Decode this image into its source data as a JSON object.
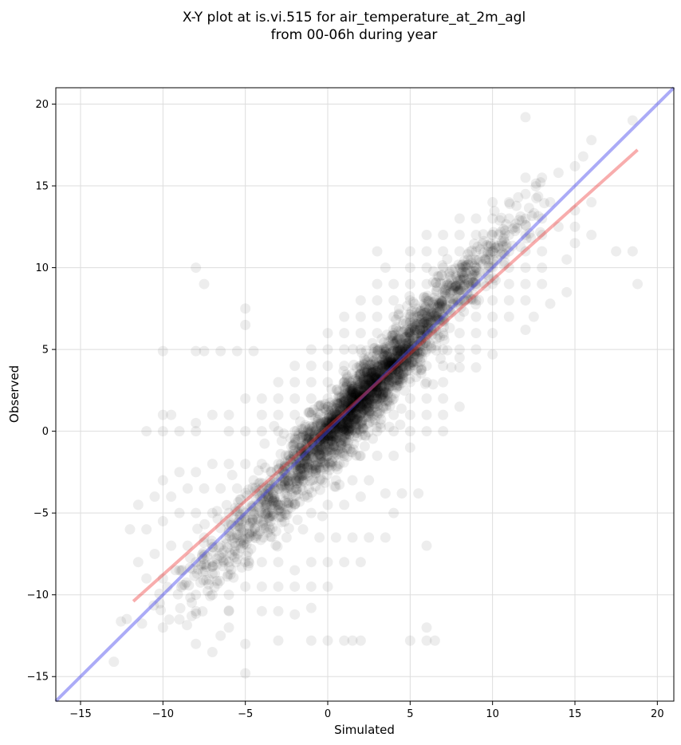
{
  "chart_data": {
    "type": "scatter",
    "title_lines": [
      "X-Y plot at is.vi.515 for air_temperature_at_2m_agl",
      "from 00-06h during year"
    ],
    "xlabel": "Simulated",
    "ylabel": "Observed",
    "xlim": [
      -16.5,
      21
    ],
    "ylim": [
      -16.5,
      21
    ],
    "xticks": [
      -15,
      -10,
      -5,
      0,
      5,
      10,
      15,
      20
    ],
    "yticks": [
      -15,
      -10,
      -5,
      0,
      5,
      10,
      15,
      20
    ],
    "xtick_labels": [
      "−15",
      "−10",
      "−5",
      "0",
      "5",
      "10",
      "15",
      "20"
    ],
    "ytick_labels": [
      "−15",
      "−10",
      "−5",
      "0",
      "5",
      "10",
      "15",
      "20"
    ],
    "grid": true,
    "point_color": "#000000",
    "point_alpha": 0.07,
    "series": [
      {
        "kind": "points",
        "points": [
          [
            -6,
            -12
          ],
          [
            -6.5,
            -12.5
          ],
          [
            -5,
            -13
          ],
          [
            -3,
            -12.8
          ],
          [
            -1,
            -12.8
          ],
          [
            1,
            -12.8
          ],
          [
            2,
            -12.8
          ],
          [
            5,
            -12.8
          ],
          [
            6,
            -12.8
          ],
          [
            6.5,
            -12.8
          ],
          [
            -7,
            -13.5
          ],
          [
            -8,
            -13
          ],
          [
            -5,
            -14.8
          ],
          [
            0,
            -12.8
          ],
          [
            1.5,
            -12.8
          ],
          [
            -10,
            -12
          ],
          [
            -9,
            -11.5
          ],
          [
            -8,
            -11
          ],
          [
            -6,
            -11
          ],
          [
            -4,
            -11
          ],
          [
            -3,
            -11
          ],
          [
            -2,
            -11.2
          ],
          [
            -1,
            -10.8
          ],
          [
            6,
            -12
          ],
          [
            -8,
            -10
          ],
          [
            -7,
            -10
          ],
          [
            -6,
            -10
          ],
          [
            -5,
            -9.5
          ],
          [
            -4,
            -9.5
          ],
          [
            -3,
            -9.5
          ],
          [
            -2,
            -9.5
          ],
          [
            -1,
            -9.5
          ],
          [
            0,
            -9.5
          ],
          [
            -11,
            -9
          ],
          [
            -10,
            -9
          ],
          [
            -9,
            -8.5
          ],
          [
            -8,
            -8
          ],
          [
            -7,
            -8
          ],
          [
            -6,
            -8
          ],
          [
            -5,
            -8
          ],
          [
            -4,
            -8
          ],
          [
            -3,
            -8
          ],
          [
            -2,
            -8.5
          ],
          [
            -1,
            -8
          ],
          [
            0,
            -8
          ],
          [
            1,
            -8
          ],
          [
            2,
            -8
          ],
          [
            -11.5,
            -8
          ],
          [
            -10.5,
            -7.5
          ],
          [
            -9.5,
            -7
          ],
          [
            -8.5,
            -7
          ],
          [
            -7.5,
            -6.5
          ],
          [
            -6.5,
            -7
          ],
          [
            -5.5,
            -6.5
          ],
          [
            -4.5,
            -6.5
          ],
          [
            -3.5,
            -6
          ],
          [
            -2.5,
            -6.5
          ],
          [
            -1.5,
            -6
          ],
          [
            -0.5,
            -6.5
          ],
          [
            0.5,
            -6.5
          ],
          [
            1.5,
            -6.5
          ],
          [
            2.5,
            -6.5
          ],
          [
            3.5,
            -6.5
          ],
          [
            4,
            -5
          ],
          [
            6,
            -7
          ],
          [
            -12,
            -6
          ],
          [
            -11,
            -6
          ],
          [
            -10,
            -5.5
          ],
          [
            -9,
            -5
          ],
          [
            -8,
            -5
          ],
          [
            -7,
            -5
          ],
          [
            -6,
            -5
          ],
          [
            -5,
            -5
          ],
          [
            -4,
            -5
          ],
          [
            -3,
            -4.5
          ],
          [
            -2,
            -4.5
          ],
          [
            -1,
            -5
          ],
          [
            0,
            -4.5
          ],
          [
            1,
            -4.5
          ],
          [
            2,
            -4
          ],
          [
            -11.5,
            -4.5
          ],
          [
            -10.5,
            -4
          ],
          [
            -9.5,
            -4
          ],
          [
            -8.5,
            -3.5
          ],
          [
            -7.5,
            -3.5
          ],
          [
            -6.5,
            -3.5
          ],
          [
            -5.5,
            -3.5
          ],
          [
            -4.5,
            -3
          ],
          [
            -3.5,
            -3
          ],
          [
            -2.5,
            -3
          ],
          [
            -1.5,
            -3
          ],
          [
            -0.5,
            -3
          ],
          [
            0.5,
            -3
          ],
          [
            1.5,
            -3
          ],
          [
            2.5,
            -3
          ],
          [
            3.5,
            -3.8
          ],
          [
            4.5,
            -3.8
          ],
          [
            5.5,
            -3.8
          ],
          [
            -10,
            -3
          ],
          [
            -9,
            -2.5
          ],
          [
            -8,
            -2.5
          ],
          [
            -7,
            -2
          ],
          [
            -6,
            -2
          ],
          [
            -5,
            -2
          ],
          [
            -4,
            -2
          ],
          [
            -3,
            -2
          ],
          [
            -2,
            -1.5
          ],
          [
            -1,
            -1.5
          ],
          [
            0,
            -1.5
          ],
          [
            1,
            -1.5
          ],
          [
            2,
            -1.5
          ],
          [
            3,
            -1.5
          ],
          [
            4,
            -1.5
          ],
          [
            5,
            -1
          ],
          [
            -11,
            0
          ],
          [
            -10,
            0
          ],
          [
            -9,
            0
          ],
          [
            -8,
            0
          ],
          [
            -6,
            0
          ],
          [
            -5,
            0
          ],
          [
            -4,
            0
          ],
          [
            -3,
            0
          ],
          [
            -2,
            0
          ],
          [
            -1,
            0
          ],
          [
            0,
            0
          ],
          [
            1,
            0
          ],
          [
            2,
            0
          ],
          [
            3,
            0
          ],
          [
            4,
            0
          ],
          [
            5,
            0
          ],
          [
            6,
            0
          ],
          [
            7,
            0
          ],
          [
            -10,
            1
          ],
          [
            -9.5,
            1
          ],
          [
            -8,
            0.5
          ],
          [
            -7,
            1
          ],
          [
            -6,
            1
          ],
          [
            -4,
            1
          ],
          [
            -3,
            1
          ],
          [
            -2,
            1
          ],
          [
            -1,
            1
          ],
          [
            0,
            1
          ],
          [
            1,
            1
          ],
          [
            2,
            1
          ],
          [
            3,
            1
          ],
          [
            4,
            1
          ],
          [
            5,
            1
          ],
          [
            6,
            1
          ],
          [
            7,
            1
          ],
          [
            8,
            1.5
          ],
          [
            -5,
            2
          ],
          [
            -4,
            2
          ],
          [
            -3,
            2
          ],
          [
            -2,
            2
          ],
          [
            -1,
            2
          ],
          [
            0,
            2
          ],
          [
            1,
            2
          ],
          [
            2,
            2
          ],
          [
            3,
            2
          ],
          [
            4,
            2
          ],
          [
            5,
            2
          ],
          [
            6,
            2
          ],
          [
            7,
            2
          ],
          [
            -3,
            3
          ],
          [
            -2,
            3
          ],
          [
            -1,
            3
          ],
          [
            0,
            3
          ],
          [
            1,
            3
          ],
          [
            2,
            3
          ],
          [
            3,
            3
          ],
          [
            4,
            3
          ],
          [
            5,
            3
          ],
          [
            6,
            3
          ],
          [
            7,
            3
          ],
          [
            8,
            3.9
          ],
          [
            9,
            3.9
          ],
          [
            7.5,
            3.9
          ],
          [
            -7.5,
            4.9
          ],
          [
            -6.5,
            4.9
          ],
          [
            -5.5,
            4.9
          ],
          [
            -4.5,
            4.9
          ],
          [
            -10,
            4.9
          ],
          [
            -8,
            4.9
          ],
          [
            -2,
            4
          ],
          [
            -1,
            4
          ],
          [
            0,
            4
          ],
          [
            1,
            4
          ],
          [
            2,
            4
          ],
          [
            3,
            4
          ],
          [
            4,
            4
          ],
          [
            5,
            4
          ],
          [
            6,
            4
          ],
          [
            7,
            4
          ],
          [
            8,
            4.5
          ],
          [
            -1,
            5
          ],
          [
            0,
            5
          ],
          [
            1,
            5
          ],
          [
            2,
            5
          ],
          [
            3,
            5
          ],
          [
            4,
            5
          ],
          [
            5,
            5
          ],
          [
            6,
            5
          ],
          [
            7,
            5
          ],
          [
            8,
            5
          ],
          [
            9,
            5
          ],
          [
            10,
            4.7
          ],
          [
            -5,
            6.5
          ],
          [
            -5,
            7.5
          ],
          [
            -7.5,
            9
          ],
          [
            -8,
            10
          ],
          [
            0,
            6
          ],
          [
            1,
            6
          ],
          [
            2,
            6
          ],
          [
            3,
            6
          ],
          [
            4,
            6
          ],
          [
            5,
            6
          ],
          [
            6,
            6
          ],
          [
            7,
            6
          ],
          [
            8,
            6
          ],
          [
            9,
            6
          ],
          [
            10,
            6
          ],
          [
            12,
            6.2
          ],
          [
            1,
            7
          ],
          [
            2,
            7
          ],
          [
            3,
            7
          ],
          [
            4,
            7
          ],
          [
            5,
            7
          ],
          [
            6,
            7
          ],
          [
            7,
            7
          ],
          [
            8,
            7
          ],
          [
            9,
            7
          ],
          [
            10,
            7
          ],
          [
            11,
            7
          ],
          [
            12.5,
            7
          ],
          [
            13.5,
            7.8
          ],
          [
            2,
            8
          ],
          [
            3,
            8
          ],
          [
            4,
            8
          ],
          [
            5,
            8
          ],
          [
            6,
            8
          ],
          [
            7,
            8
          ],
          [
            8,
            8
          ],
          [
            9,
            8
          ],
          [
            10,
            8
          ],
          [
            11,
            8
          ],
          [
            12,
            8
          ],
          [
            14.5,
            8.5
          ],
          [
            3,
            9
          ],
          [
            4,
            9
          ],
          [
            5,
            9
          ],
          [
            6,
            9
          ],
          [
            7,
            9
          ],
          [
            8,
            9
          ],
          [
            9,
            9
          ],
          [
            10,
            9
          ],
          [
            11,
            9
          ],
          [
            12,
            9
          ],
          [
            13,
            9
          ],
          [
            18.8,
            9
          ],
          [
            3.5,
            10
          ],
          [
            5,
            10
          ],
          [
            6,
            10
          ],
          [
            7,
            10
          ],
          [
            8,
            10
          ],
          [
            9,
            10
          ],
          [
            10,
            10
          ],
          [
            11,
            10
          ],
          [
            12,
            10
          ],
          [
            13,
            10
          ],
          [
            14.5,
            10.5
          ],
          [
            3,
            11
          ],
          [
            5,
            11
          ],
          [
            6,
            11
          ],
          [
            7,
            11
          ],
          [
            8,
            11
          ],
          [
            9,
            11
          ],
          [
            10,
            11
          ],
          [
            11,
            11
          ],
          [
            12,
            11
          ],
          [
            13,
            11
          ],
          [
            15,
            11.5
          ],
          [
            17.5,
            11
          ],
          [
            18.5,
            11
          ],
          [
            6,
            12
          ],
          [
            7,
            12
          ],
          [
            8,
            12
          ],
          [
            9,
            12
          ],
          [
            10,
            12
          ],
          [
            11,
            12
          ],
          [
            12,
            12
          ],
          [
            13,
            12
          ],
          [
            14,
            12.5
          ],
          [
            15,
            12.5
          ],
          [
            16,
            12
          ],
          [
            8,
            13
          ],
          [
            9,
            13
          ],
          [
            10,
            13
          ],
          [
            11,
            13
          ],
          [
            12,
            13
          ],
          [
            13,
            13
          ],
          [
            13.5,
            14
          ],
          [
            15,
            13.5
          ],
          [
            16,
            14
          ],
          [
            10,
            14
          ],
          [
            11,
            14
          ],
          [
            12,
            14.5
          ],
          [
            12,
            15.5
          ],
          [
            13,
            15.5
          ],
          [
            14,
            15.8
          ],
          [
            15,
            16.2
          ],
          [
            15.5,
            16.8
          ],
          [
            16,
            17.8
          ],
          [
            12,
            19.2
          ],
          [
            18.5,
            19
          ]
        ]
      },
      {
        "kind": "cluster",
        "center": [
          2,
          2
        ],
        "spread": [
          2.3,
          1.6
        ],
        "orientation": 1,
        "count": 1500
      },
      {
        "kind": "cluster",
        "center": [
          -2,
          -3
        ],
        "spread": [
          3.6,
          2.2
        ],
        "orientation": 1,
        "count": 650
      },
      {
        "kind": "cluster",
        "center": [
          7,
          8
        ],
        "spread": [
          2.6,
          1.6
        ],
        "orientation": 1,
        "count": 450
      }
    ],
    "lines": [
      {
        "name": "",
        "color": "#4444ee",
        "opacity": 0.45,
        "x": [
          -16.5,
          21
        ],
        "y": [
          -16.5,
          21
        ]
      },
      {
        "name": "",
        "color": "#ee3333",
        "opacity": 0.4,
        "x": [
          -11.8,
          18.8
        ],
        "y": [
          -10.4,
          17.2
        ]
      }
    ]
  }
}
